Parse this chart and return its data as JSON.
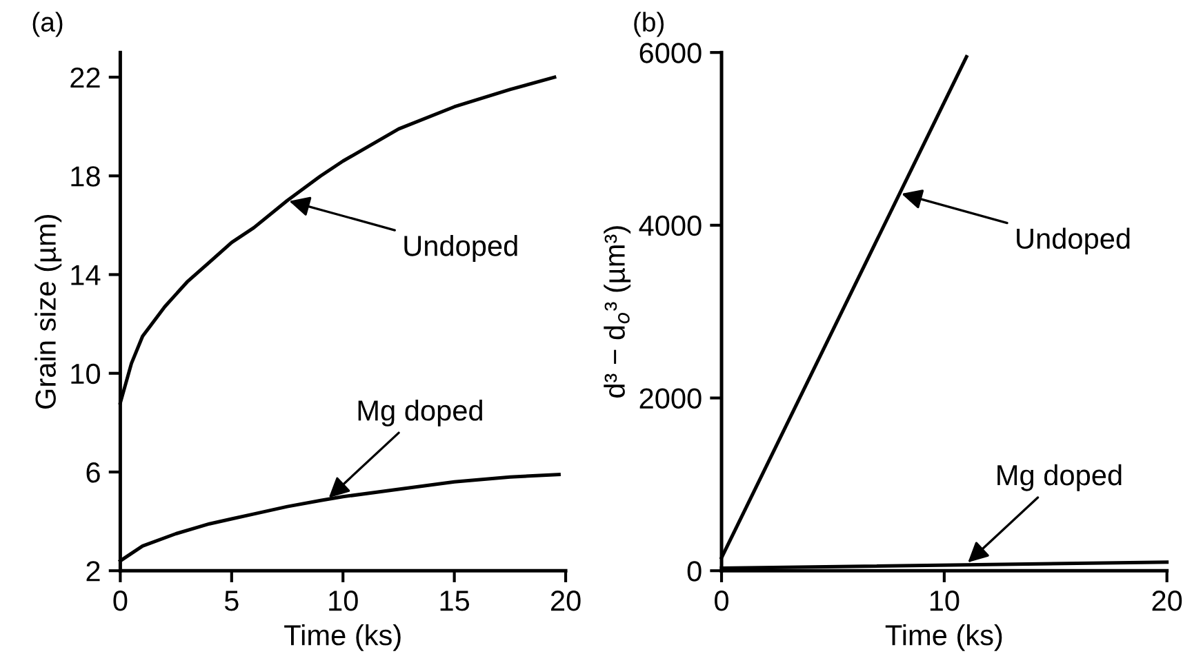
{
  "chart_data": [
    {
      "type": "line",
      "title": "(a)",
      "xlabel": "Time (ks)",
      "ylabel": "Grain size (µm)",
      "xlim": [
        0,
        20
      ],
      "ylim": [
        2,
        23
      ],
      "xticks": [
        0,
        5,
        10,
        15,
        20
      ],
      "yticks": [
        2,
        6,
        10,
        14,
        18,
        22
      ],
      "grid": false,
      "legend": false,
      "marker": "none",
      "line_style": "solid",
      "series": [
        {
          "color": "#000000",
          "x": [
            0,
            0.5,
            1,
            2,
            3,
            4,
            5,
            6,
            7.5,
            9,
            10,
            12.5,
            15,
            17.5,
            19.5
          ],
          "values": [
            8.8,
            10.4,
            11.5,
            12.7,
            13.7,
            14.5,
            15.3,
            15.9,
            17,
            18,
            18.6,
            19.9,
            20.8,
            21.5,
            22
          ]
        },
        {
          "color": "#000000",
          "x": [
            0,
            1,
            2.5,
            4,
            5,
            6,
            7.5,
            9,
            10,
            12.5,
            15,
            17.5,
            19.7
          ],
          "values": [
            2.4,
            3,
            3.5,
            3.9,
            4.1,
            4.3,
            4.6,
            4.85,
            5,
            5.3,
            5.6,
            5.8,
            5.9
          ]
        }
      ],
      "annotations": [
        {
          "text": "Undoped",
          "x": 7.5,
          "y": 17
        },
        {
          "text": "Mg doped",
          "x": 9.3,
          "y": 4.9
        }
      ]
    },
    {
      "type": "line",
      "title": "(b)",
      "xlabel": "Time (ks)",
      "ylabel": "d³ − d$_{o}$³ (µm³)",
      "xlim": [
        0,
        20
      ],
      "ylim": [
        0,
        6000
      ],
      "xticks": [
        0,
        10,
        20
      ],
      "yticks": [
        0,
        2000,
        4000,
        6000
      ],
      "grid": false,
      "legend": false,
      "marker": "none",
      "line_style": "solid",
      "series": [
        {
          "color": "#000000",
          "x": [
            0,
            11
          ],
          "values": [
            150,
            5950
          ]
        },
        {
          "color": "#000000",
          "x": [
            0,
            20
          ],
          "values": [
            30,
            100
          ]
        }
      ],
      "annotations": [
        {
          "text": "Undoped",
          "x": 8,
          "y": 4370
        },
        {
          "text": "Mg doped",
          "x": 11,
          "y": 80
        }
      ]
    }
  ]
}
